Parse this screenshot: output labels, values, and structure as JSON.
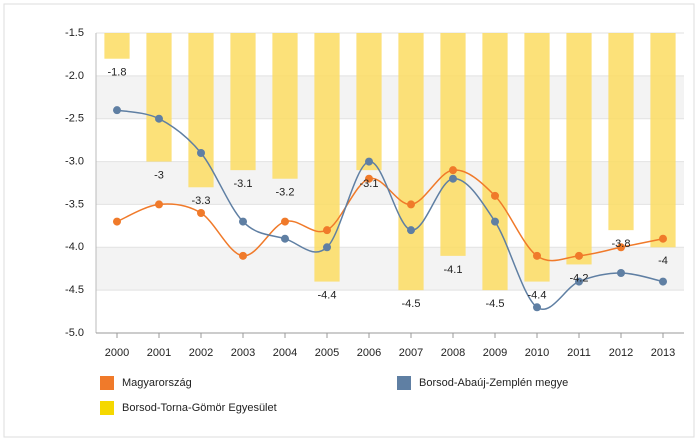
{
  "chart_data": {
    "type": "bar_line",
    "categories": [
      "2000",
      "2001",
      "2002",
      "2003",
      "2004",
      "2005",
      "2006",
      "2007",
      "2008",
      "2009",
      "2010",
      "2011",
      "2012",
      "2013"
    ],
    "series": [
      {
        "name": "Borsod-Torna-Gömör Egyesület",
        "type": "bar",
        "color": "#fbdc62",
        "values": [
          -1.8,
          -3,
          -3.3,
          -3.1,
          -3.2,
          -4.4,
          -3.1,
          -4.5,
          -4.1,
          -4.5,
          -4.4,
          -4.2,
          -3.8,
          -4
        ]
      },
      {
        "name": "Magyarország",
        "type": "line",
        "color": "#f07a2a",
        "values": [
          -3.7,
          -3.5,
          -3.6,
          -4.1,
          -3.7,
          -3.8,
          -3.2,
          -3.5,
          -3.1,
          -3.4,
          -4.1,
          -4.1,
          -4.0,
          -3.9
        ]
      },
      {
        "name": "Borsod-Abaúj-Zemplén megye",
        "type": "line",
        "color": "#5f7fa3",
        "values": [
          -2.4,
          -2.5,
          -2.9,
          -3.7,
          -3.9,
          -4.0,
          -3.0,
          -3.8,
          -3.2,
          -3.7,
          -4.7,
          -4.4,
          -4.3,
          -4.4
        ]
      }
    ],
    "ylim": [
      -1.5,
      -5.0
    ],
    "yticks": [
      -1.5,
      {
        "value": -2,
        "label": "-2.0"
      },
      -2.5,
      {
        "value": -3,
        "label": "-3.0"
      },
      -3.5,
      {
        "value": -4,
        "label": "-4.0"
      },
      -4.5,
      {
        "value": -5,
        "label": "-5.0"
      }
    ],
    "grid": true
  }
}
